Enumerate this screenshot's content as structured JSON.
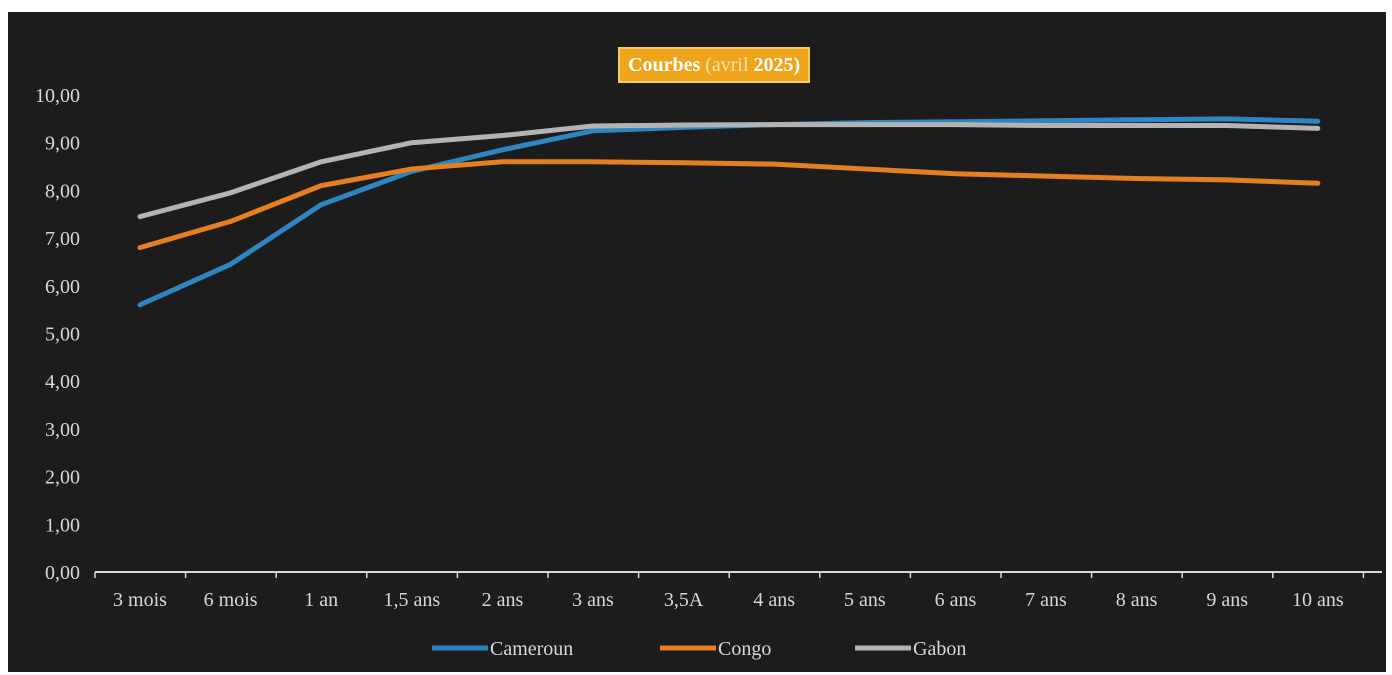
{
  "chart_data": {
    "type": "line",
    "title": "Courbes",
    "subtitle": "(avril 2025)",
    "title_end": ")",
    "categories": [
      "3 mois",
      "6 mois",
      "1 an",
      "1,5 ans",
      "2 ans",
      "3 ans",
      "3,5A",
      "4 ans",
      "5 ans",
      "6 ans",
      "7 ans",
      "8 ans",
      "9 ans",
      "10 ans"
    ],
    "ylim": [
      0,
      10
    ],
    "yticks": [
      "0,00",
      "1,00",
      "2,00",
      "3,00",
      "4,00",
      "5,00",
      "6,00",
      "7,00",
      "8,00",
      "9,00",
      "10,00"
    ],
    "grid": false,
    "legend_position": "bottom",
    "series": [
      {
        "name": "Cameroun",
        "color": "#2e86c1",
        "values": [
          5.6,
          6.45,
          7.7,
          8.4,
          8.85,
          9.25,
          9.32,
          9.38,
          9.42,
          9.44,
          9.46,
          9.48,
          9.5,
          9.45
        ]
      },
      {
        "name": "Congo",
        "color": "#e67e22",
        "values": [
          6.8,
          7.35,
          8.1,
          8.45,
          8.6,
          8.6,
          8.58,
          8.55,
          8.45,
          8.35,
          8.3,
          8.25,
          8.22,
          8.15
        ]
      },
      {
        "name": "Gabon",
        "color": "#b3b3b3",
        "values": [
          7.45,
          7.95,
          8.6,
          9.0,
          9.15,
          9.35,
          9.37,
          9.38,
          9.38,
          9.38,
          9.36,
          9.36,
          9.36,
          9.3
        ]
      }
    ]
  }
}
